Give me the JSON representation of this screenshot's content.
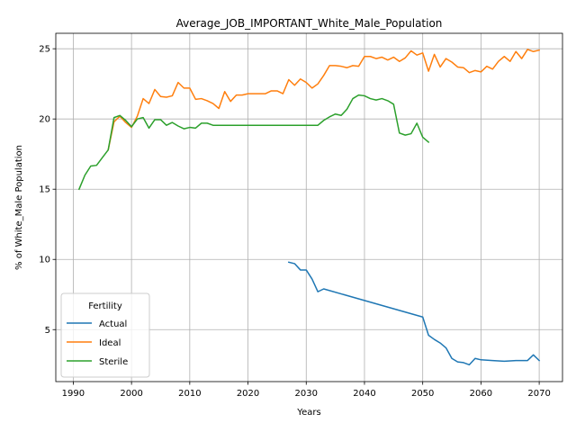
{
  "chart_data": {
    "type": "line",
    "title": "Average_JOB_IMPORTANT_White_Male_Population",
    "xlabel": "Years",
    "ylabel": "% of White_Male Population",
    "xlim": [
      1987,
      2074
    ],
    "ylim": [
      1.3,
      26.1
    ],
    "xticks": [
      1990,
      2000,
      2010,
      2020,
      2030,
      2040,
      2050,
      2060,
      2070
    ],
    "yticks": [
      5,
      10,
      15,
      20,
      25
    ],
    "grid": true,
    "legend": {
      "title": "Fertility",
      "placement": "lower-left"
    },
    "series": [
      {
        "name": "Actual",
        "color": "#1f77b4",
        "points": [
          [
            2027,
            9.8
          ],
          [
            2028,
            9.7
          ],
          [
            2029,
            9.25
          ],
          [
            2030,
            9.25
          ],
          [
            2031,
            8.6
          ],
          [
            2032,
            7.7
          ],
          [
            2033,
            7.9
          ],
          [
            2050,
            5.9
          ],
          [
            2051,
            4.6
          ],
          [
            2052,
            4.3
          ],
          [
            2053,
            4.05
          ],
          [
            2054,
            3.7
          ],
          [
            2055,
            2.95
          ],
          [
            2056,
            2.7
          ],
          [
            2057,
            2.65
          ],
          [
            2058,
            2.5
          ],
          [
            2059,
            2.95
          ],
          [
            2060,
            2.85
          ],
          [
            2062,
            2.8
          ],
          [
            2064,
            2.75
          ],
          [
            2066,
            2.8
          ],
          [
            2068,
            2.8
          ],
          [
            2069,
            3.2
          ],
          [
            2070,
            2.8
          ]
        ]
      },
      {
        "name": "Ideal",
        "color": "#ff7f0e",
        "points": [
          [
            1996,
            17.8
          ],
          [
            1997,
            19.8
          ],
          [
            1998,
            20.2
          ],
          [
            1999,
            19.75
          ],
          [
            2000,
            19.4
          ],
          [
            2001,
            20.2
          ],
          [
            2002,
            21.45
          ],
          [
            2003,
            21.1
          ],
          [
            2004,
            22.1
          ],
          [
            2005,
            21.6
          ],
          [
            2006,
            21.55
          ],
          [
            2007,
            21.65
          ],
          [
            2008,
            22.6
          ],
          [
            2009,
            22.2
          ],
          [
            2010,
            22.2
          ],
          [
            2011,
            21.4
          ],
          [
            2012,
            21.45
          ],
          [
            2013,
            21.3
          ],
          [
            2014,
            21.1
          ],
          [
            2015,
            20.75
          ],
          [
            2016,
            21.95
          ],
          [
            2017,
            21.25
          ],
          [
            2018,
            21.7
          ],
          [
            2019,
            21.7
          ],
          [
            2020,
            21.8
          ],
          [
            2021,
            21.8
          ],
          [
            2022,
            21.8
          ],
          [
            2023,
            21.8
          ],
          [
            2024,
            22.0
          ],
          [
            2025,
            22.0
          ],
          [
            2026,
            21.8
          ],
          [
            2027,
            22.8
          ],
          [
            2028,
            22.4
          ],
          [
            2029,
            22.85
          ],
          [
            2030,
            22.6
          ],
          [
            2031,
            22.2
          ],
          [
            2032,
            22.5
          ],
          [
            2033,
            23.1
          ],
          [
            2034,
            23.8
          ],
          [
            2035,
            23.8
          ],
          [
            2036,
            23.75
          ],
          [
            2037,
            23.65
          ],
          [
            2038,
            23.8
          ],
          [
            2039,
            23.75
          ],
          [
            2040,
            24.45
          ],
          [
            2041,
            24.45
          ],
          [
            2042,
            24.3
          ],
          [
            2043,
            24.4
          ],
          [
            2044,
            24.2
          ],
          [
            2045,
            24.4
          ],
          [
            2046,
            24.1
          ],
          [
            2047,
            24.35
          ],
          [
            2048,
            24.85
          ],
          [
            2049,
            24.55
          ],
          [
            2050,
            24.7
          ],
          [
            2051,
            23.4
          ],
          [
            2052,
            24.6
          ],
          [
            2053,
            23.7
          ],
          [
            2054,
            24.3
          ],
          [
            2055,
            24.05
          ],
          [
            2056,
            23.7
          ],
          [
            2057,
            23.65
          ],
          [
            2058,
            23.3
          ],
          [
            2059,
            23.45
          ],
          [
            2060,
            23.35
          ],
          [
            2061,
            23.75
          ],
          [
            2062,
            23.55
          ],
          [
            2063,
            24.1
          ],
          [
            2064,
            24.45
          ],
          [
            2065,
            24.1
          ],
          [
            2066,
            24.8
          ],
          [
            2067,
            24.3
          ],
          [
            2068,
            24.95
          ],
          [
            2069,
            24.8
          ],
          [
            2070,
            24.9
          ]
        ]
      },
      {
        "name": "Sterile",
        "color": "#2ca02c",
        "points": [
          [
            1991,
            15.0
          ],
          [
            1992,
            16.0
          ],
          [
            1993,
            16.65
          ],
          [
            1994,
            16.7
          ],
          [
            1995,
            17.25
          ],
          [
            1996,
            17.8
          ],
          [
            1997,
            20.1
          ],
          [
            1998,
            20.25
          ],
          [
            1999,
            19.9
          ],
          [
            2000,
            19.45
          ],
          [
            2001,
            20.0
          ],
          [
            2002,
            20.1
          ],
          [
            2003,
            19.35
          ],
          [
            2004,
            19.95
          ],
          [
            2005,
            19.95
          ],
          [
            2006,
            19.55
          ],
          [
            2007,
            19.75
          ],
          [
            2008,
            19.5
          ],
          [
            2009,
            19.3
          ],
          [
            2010,
            19.4
          ],
          [
            2011,
            19.35
          ],
          [
            2012,
            19.7
          ],
          [
            2013,
            19.7
          ],
          [
            2014,
            19.55
          ],
          [
            2020,
            19.55
          ],
          [
            2030,
            19.55
          ],
          [
            2032,
            19.55
          ],
          [
            2033,
            19.9
          ],
          [
            2034,
            20.15
          ],
          [
            2035,
            20.35
          ],
          [
            2036,
            20.25
          ],
          [
            2037,
            20.7
          ],
          [
            2038,
            21.45
          ],
          [
            2039,
            21.7
          ],
          [
            2040,
            21.65
          ],
          [
            2041,
            21.45
          ],
          [
            2042,
            21.35
          ],
          [
            2043,
            21.45
          ],
          [
            2044,
            21.3
          ],
          [
            2045,
            21.05
          ],
          [
            2046,
            19.0
          ],
          [
            2047,
            18.85
          ],
          [
            2048,
            18.95
          ],
          [
            2049,
            19.7
          ],
          [
            2050,
            18.7
          ],
          [
            2051,
            18.35
          ]
        ]
      }
    ]
  }
}
